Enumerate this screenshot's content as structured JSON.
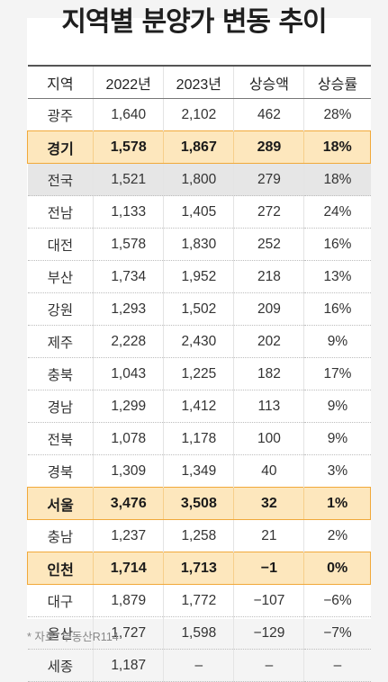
{
  "title": "지역별 분양가 변동 추이",
  "headers": [
    "지역",
    "2022년",
    "2023년",
    "상승액",
    "상승률"
  ],
  "rows": [
    {
      "cells": [
        "광주",
        "1,640",
        "2,102",
        "462",
        "28%"
      ],
      "style": ""
    },
    {
      "cells": [
        "경기",
        "1,578",
        "1,867",
        "289",
        "18%"
      ],
      "style": "hl"
    },
    {
      "cells": [
        "전국",
        "1,521",
        "1,800",
        "279",
        "18%"
      ],
      "style": "gray"
    },
    {
      "cells": [
        "전남",
        "1,133",
        "1,405",
        "272",
        "24%"
      ],
      "style": ""
    },
    {
      "cells": [
        "대전",
        "1,578",
        "1,830",
        "252",
        "16%"
      ],
      "style": ""
    },
    {
      "cells": [
        "부산",
        "1,734",
        "1,952",
        "218",
        "13%"
      ],
      "style": ""
    },
    {
      "cells": [
        "강원",
        "1,293",
        "1,502",
        "209",
        "16%"
      ],
      "style": ""
    },
    {
      "cells": [
        "제주",
        "2,228",
        "2,430",
        "202",
        "9%"
      ],
      "style": ""
    },
    {
      "cells": [
        "충북",
        "1,043",
        "1,225",
        "182",
        "17%"
      ],
      "style": ""
    },
    {
      "cells": [
        "경남",
        "1,299",
        "1,412",
        "113",
        "9%"
      ],
      "style": ""
    },
    {
      "cells": [
        "전북",
        "1,078",
        "1,178",
        "100",
        "9%"
      ],
      "style": ""
    },
    {
      "cells": [
        "경북",
        "1,309",
        "1,349",
        "40",
        "3%"
      ],
      "style": ""
    },
    {
      "cells": [
        "서울",
        "3,476",
        "3,508",
        "32",
        "1%"
      ],
      "style": "hl"
    },
    {
      "cells": [
        "충남",
        "1,237",
        "1,258",
        "21",
        "2%"
      ],
      "style": ""
    },
    {
      "cells": [
        "인천",
        "1,714",
        "1,713",
        "−1",
        "0%"
      ],
      "style": "hl"
    },
    {
      "cells": [
        "대구",
        "1,879",
        "1,772",
        "−107",
        "−6%"
      ],
      "style": ""
    },
    {
      "cells": [
        "울산",
        "1,727",
        "1,598",
        "−129",
        "−7%"
      ],
      "style": ""
    },
    {
      "cells": [
        "세종",
        "1,187",
        "–",
        "–",
        "–"
      ],
      "style": ""
    }
  ],
  "source": "* 자료: 부동산R114",
  "colors": {
    "highlight_fill": "#fde7bd",
    "highlight_border": "#f1a93a",
    "national_fill": "#e6e6e6"
  }
}
